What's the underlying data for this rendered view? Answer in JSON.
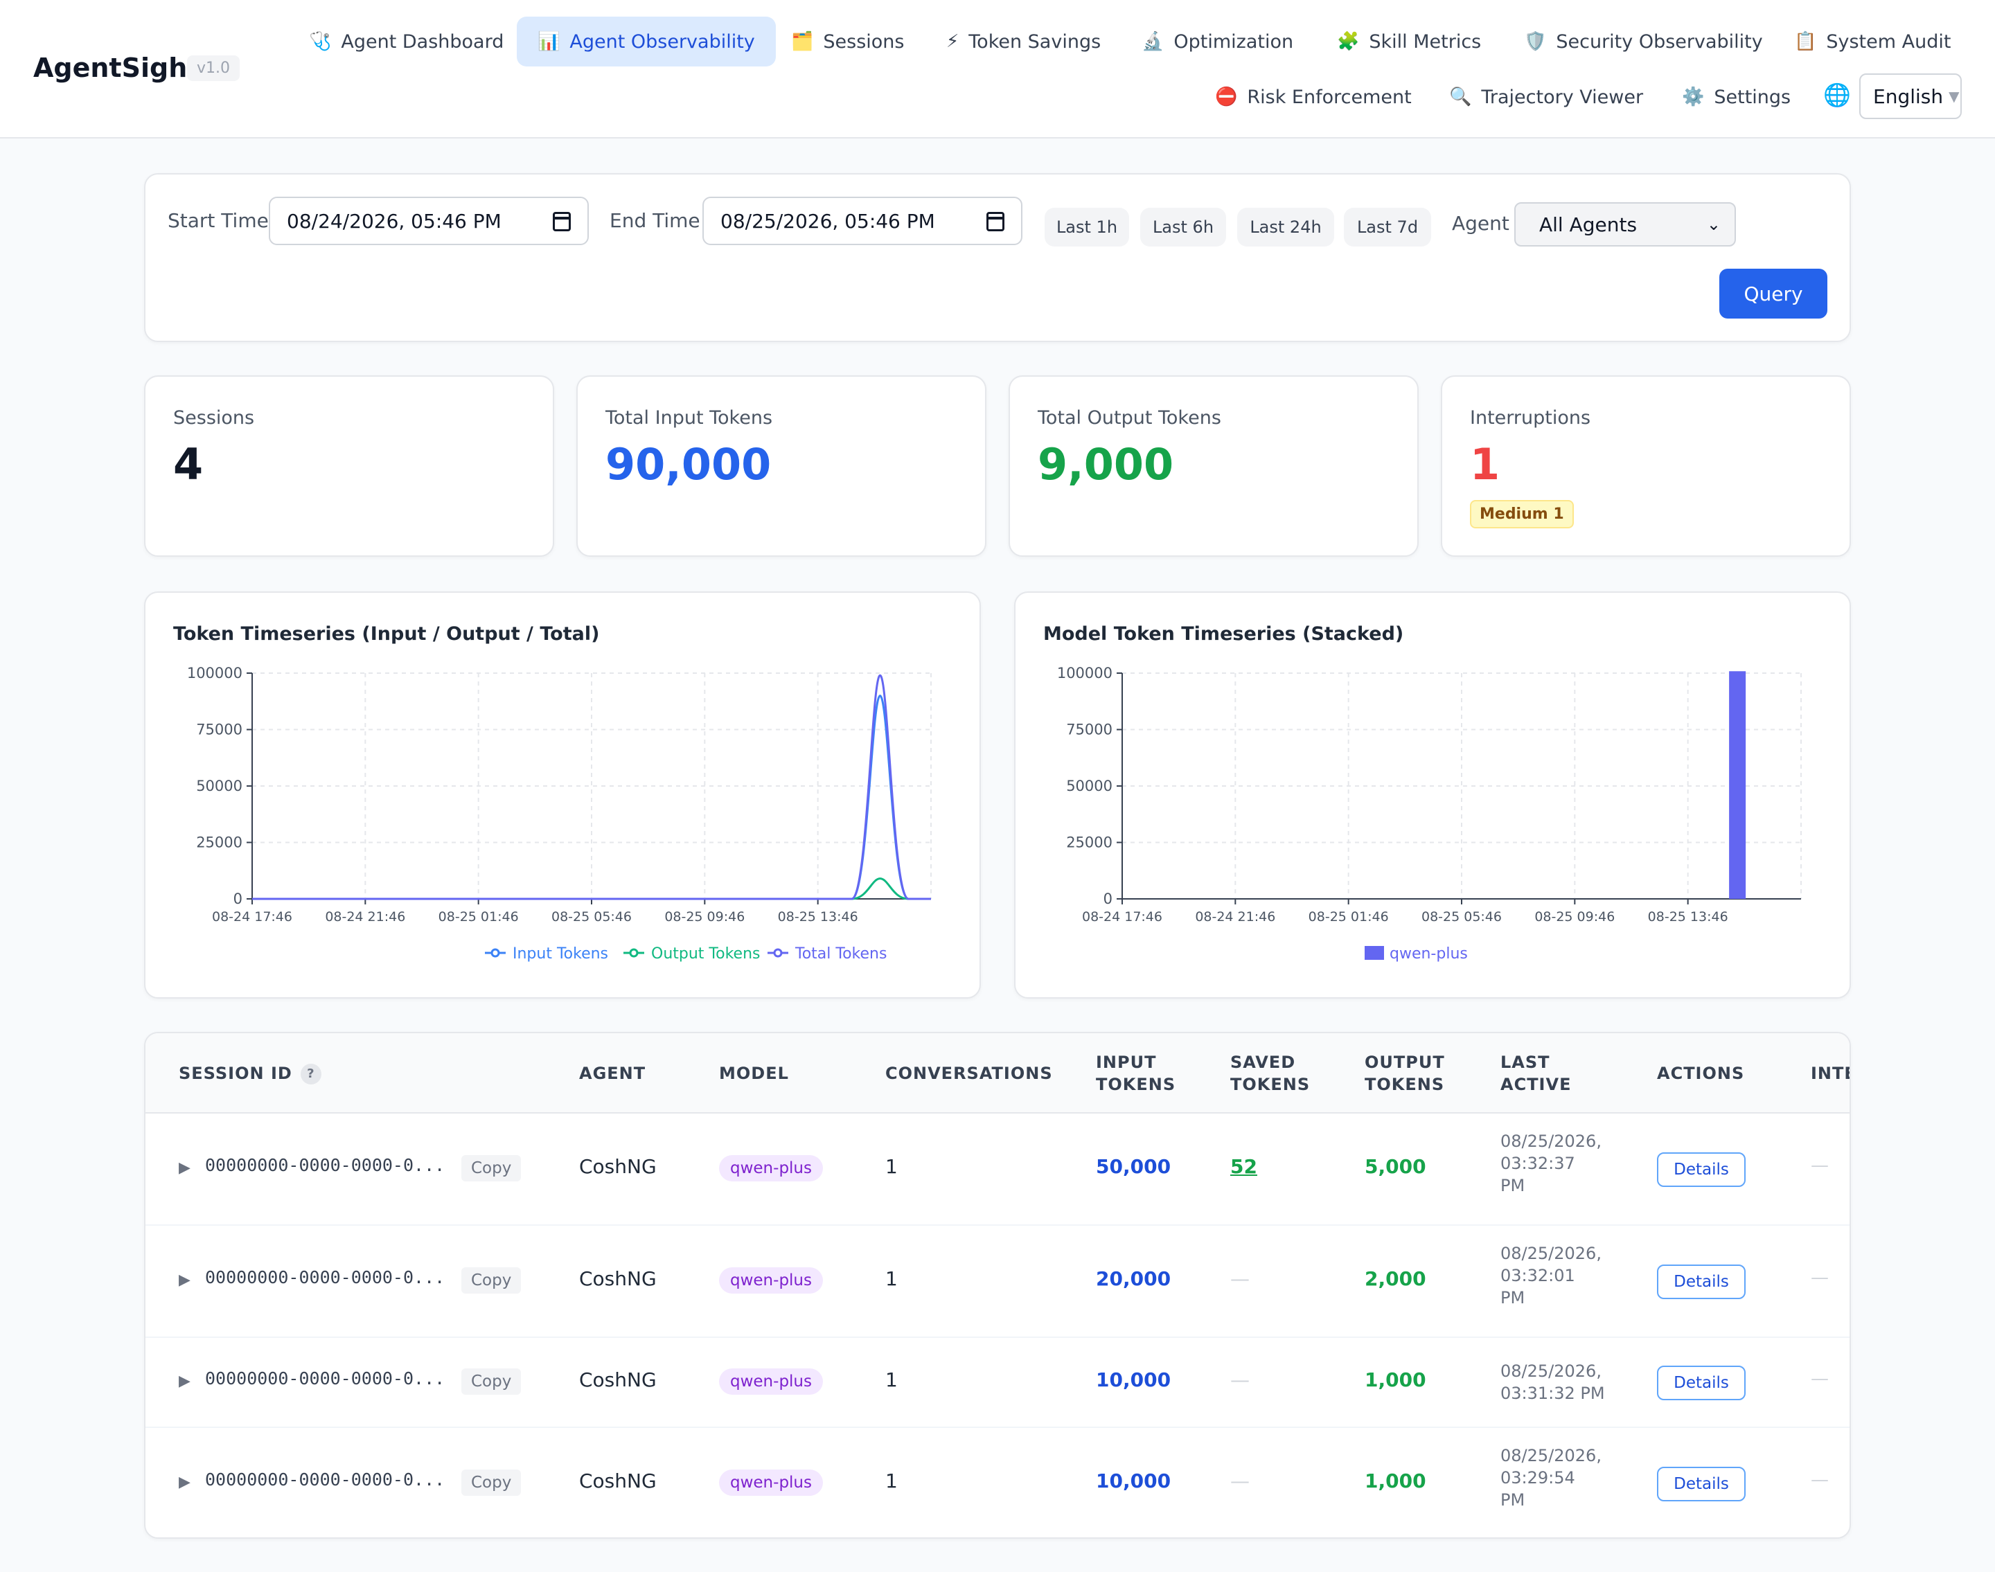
{
  "app": {
    "name": "AgentSight",
    "version": "v1.0"
  },
  "nav": {
    "items": [
      {
        "label": "Agent Dashboard",
        "icon": "stethoscope-icon",
        "glyph": "🩺"
      },
      {
        "label": "Agent Observability",
        "icon": "bar-chart-icon",
        "glyph": "📊",
        "active": true
      },
      {
        "label": "Sessions",
        "icon": "card-index-icon",
        "glyph": "🗂️"
      },
      {
        "label": "Token Savings",
        "icon": "lightning-icon",
        "glyph": "⚡"
      },
      {
        "label": "Optimization",
        "icon": "microscope-icon",
        "glyph": "🔬"
      },
      {
        "label": "Skill Metrics",
        "icon": "puzzle-icon",
        "glyph": "🧩"
      },
      {
        "label": "Security Observability",
        "icon": "shield-icon",
        "glyph": "🛡️"
      },
      {
        "label": "System Audit",
        "icon": "clipboard-icon",
        "glyph": "📋"
      },
      {
        "label": "Risk Enforcement",
        "icon": "no-entry-icon",
        "glyph": "⛔"
      },
      {
        "label": "Trajectory Viewer",
        "icon": "magnifier-icon",
        "glyph": "🔍"
      },
      {
        "label": "Settings",
        "icon": "gear-icon",
        "glyph": "⚙️"
      }
    ],
    "language": {
      "icon": "globe-icon",
      "glyph": "🌐",
      "value": "English"
    }
  },
  "filters": {
    "start_label": "Start Time",
    "start_value": "08/24/2026, 05:46 PM",
    "end_label": "End Time",
    "end_value": "08/25/2026, 05:46 PM",
    "quick_ranges": [
      "Last 1h",
      "Last 6h",
      "Last 24h",
      "Last 7d"
    ],
    "agent_label": "Agent",
    "agent_value": "All Agents",
    "query_label": "Query"
  },
  "stats": {
    "sessions": {
      "label": "Sessions",
      "value": "4"
    },
    "input_tokens": {
      "label": "Total Input Tokens",
      "value": "90,000"
    },
    "output_tokens": {
      "label": "Total Output Tokens",
      "value": "9,000"
    },
    "interruptions": {
      "label": "Interruptions",
      "value": "1",
      "badge": "Medium 1"
    }
  },
  "colors": {
    "input": "#3b82f6",
    "output": "#10b981",
    "total": "#6366f1",
    "bar": "#6366f1",
    "blue_value": "#2563eb",
    "green_value": "#16a34a",
    "red_value": "#ef4444"
  },
  "chart_data": [
    {
      "type": "line",
      "title": "Token Timeseries (Input / Output / Total)",
      "x_ticks": [
        "08-24 17:46",
        "08-24 21:46",
        "08-25 01:46",
        "08-25 05:46",
        "08-25 09:46",
        "08-25 13:46"
      ],
      "y_ticks": [
        "0",
        "25000",
        "50000",
        "75000",
        "100000"
      ],
      "ylim": [
        0,
        100000
      ],
      "x_hours_range": [
        0,
        24
      ],
      "grid": true,
      "legend": "bottom",
      "series": [
        {
          "name": "Input Tokens",
          "points": [
            [
              0,
              0
            ],
            [
              21.2,
              0
            ],
            [
              22.2,
              90000
            ],
            [
              23.2,
              0
            ],
            [
              24,
              0
            ]
          ]
        },
        {
          "name": "Output Tokens",
          "points": [
            [
              0,
              0
            ],
            [
              21.2,
              0
            ],
            [
              22.2,
              9000
            ],
            [
              23.2,
              0
            ],
            [
              24,
              0
            ]
          ]
        },
        {
          "name": "Total Tokens",
          "points": [
            [
              0,
              0
            ],
            [
              21.2,
              0
            ],
            [
              22.2,
              99000
            ],
            [
              23.2,
              0
            ],
            [
              24,
              0
            ]
          ]
        }
      ]
    },
    {
      "type": "bar",
      "title": "Model Token Timeseries (Stacked)",
      "x_ticks": [
        "08-24 17:46",
        "08-24 21:46",
        "08-25 01:46",
        "08-25 05:46",
        "08-25 09:46",
        "08-25 13:46"
      ],
      "y_ticks": [
        "0",
        "25000",
        "50000",
        "75000",
        "100000"
      ],
      "ylim": [
        0,
        100000
      ],
      "x_hours_range": [
        0,
        24
      ],
      "grid": true,
      "legend": "bottom",
      "series": [
        {
          "name": "qwen-plus",
          "bars": [
            {
              "x_hour": 21.75,
              "value": 99000
            }
          ]
        }
      ]
    }
  ],
  "table": {
    "headers": {
      "session_id": "SESSION ID",
      "help": "?",
      "agent": "AGENT",
      "model": "MODEL",
      "conversations": "CONVERSATIONS",
      "input_tokens": [
        "INPUT",
        "TOKENS"
      ],
      "saved_tokens": [
        "SAVED",
        "TOKENS"
      ],
      "output_tokens": [
        "OUTPUT",
        "TOKENS"
      ],
      "last_active": [
        "LAST",
        "ACTIVE"
      ],
      "actions": "ACTIONS",
      "inte": "INTE"
    },
    "copy_label": "Copy",
    "details_label": "Details",
    "rows": [
      {
        "session_id": "00000000-0000-0000-0...",
        "agent": "CoshNG",
        "model": "qwen-plus",
        "conversations": "1",
        "input_tokens": "50,000",
        "saved_tokens": "52",
        "output_tokens": "5,000",
        "last_active": [
          "08/25/2026,",
          "03:32:37",
          "PM"
        ],
        "inte": "—"
      },
      {
        "session_id": "00000000-0000-0000-0...",
        "agent": "CoshNG",
        "model": "qwen-plus",
        "conversations": "1",
        "input_tokens": "20,000",
        "saved_tokens": "—",
        "output_tokens": "2,000",
        "last_active": [
          "08/25/2026,",
          "03:32:01",
          "PM"
        ],
        "inte": "—"
      },
      {
        "session_id": "00000000-0000-0000-0...",
        "agent": "CoshNG",
        "model": "qwen-plus",
        "conversations": "1",
        "input_tokens": "10,000",
        "saved_tokens": "—",
        "output_tokens": "1,000",
        "last_active": [
          "08/25/2026,",
          "03:31:32 PM"
        ],
        "inte": "—"
      },
      {
        "session_id": "00000000-0000-0000-0...",
        "agent": "CoshNG",
        "model": "qwen-plus",
        "conversations": "1",
        "input_tokens": "10,000",
        "saved_tokens": "—",
        "output_tokens": "1,000",
        "last_active": [
          "08/25/2026,",
          "03:29:54",
          "PM"
        ],
        "inte": "—"
      }
    ]
  }
}
